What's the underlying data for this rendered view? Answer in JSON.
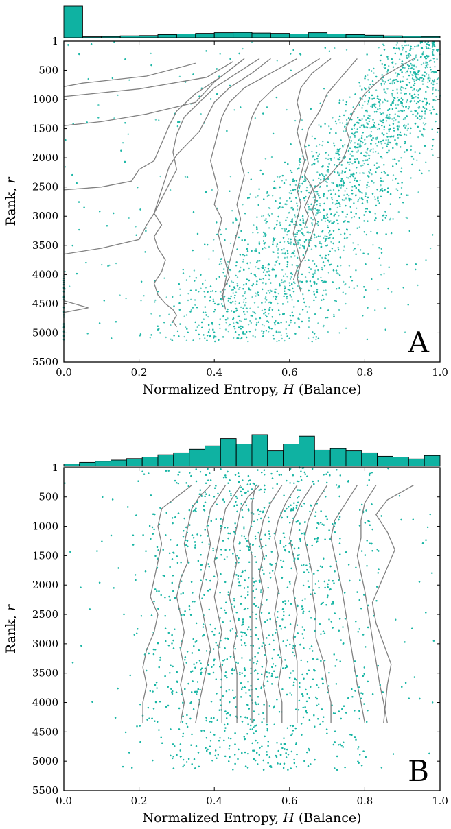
{
  "figure": {
    "colors": {
      "accent": "#14b3a3",
      "bar_fill": "#0fb2a2",
      "line": "#808080",
      "axis": "#000000"
    }
  },
  "chart_data": [
    {
      "type": "scatter",
      "panel_label": "A",
      "xlabel_parts": [
        "Normalized Entropy, ",
        "H",
        " (Balance)"
      ],
      "ylabel_parts": [
        "Rank, ",
        "r"
      ],
      "xlim": [
        0.0,
        1.0
      ],
      "ylim": [
        5500,
        1
      ],
      "y_inverted": true,
      "x_ticks": [
        "0.0",
        "0.2",
        "0.4",
        "0.6",
        "0.8",
        "1.0"
      ],
      "y_ticks": [
        "1",
        "500",
        "1000",
        "1500",
        "2000",
        "2500",
        "3000",
        "3500",
        "4000",
        "4500",
        "5000",
        "5500"
      ],
      "grid": false,
      "histogram": {
        "bins": 20,
        "counts": [
          1000,
          30,
          40,
          60,
          70,
          100,
          120,
          140,
          160,
          170,
          150,
          140,
          120,
          160,
          120,
          100,
          80,
          60,
          50,
          40
        ]
      },
      "scatter": {
        "approx_points": 5000
      },
      "curves": [
        {
          "x": [
            0.35,
            0.22,
            0.05,
            0.0
          ],
          "y": [
            380,
            600,
            720,
            780
          ]
        },
        {
          "x": [
            0.45,
            0.38,
            0.2,
            0.0
          ],
          "y": [
            350,
            620,
            820,
            950
          ]
        },
        {
          "x": [
            0.48,
            0.4,
            0.35,
            0.22,
            0.1,
            0.0
          ],
          "y": [
            300,
            700,
            1050,
            1250,
            1380,
            1450
          ]
        },
        {
          "x": [
            0.48,
            0.42,
            0.35,
            0.3,
            0.28,
            0.27,
            0.26,
            0.25,
            0.24,
            0.2,
            0.18,
            0.1,
            0.0
          ],
          "y": [
            300,
            600,
            900,
            1200,
            1450,
            1600,
            1750,
            1900,
            2050,
            2200,
            2400,
            2500,
            2550
          ]
        },
        {
          "x": [
            0.52,
            0.46,
            0.4,
            0.36,
            0.32,
            0.3,
            0.29,
            0.3,
            0.28,
            0.26,
            0.24,
            0.22,
            0.2,
            0.1,
            0.0
          ],
          "y": [
            300,
            550,
            800,
            1050,
            1300,
            1600,
            1900,
            2200,
            2450,
            2700,
            2950,
            3150,
            3400,
            3550,
            3650
          ]
        },
        {
          "x": [
            0.55,
            0.5,
            0.44,
            0.4,
            0.38,
            0.36,
            0.33,
            0.3,
            0.28,
            0.27,
            0.26,
            0.25,
            0.24,
            0.26,
            0.24,
            0.25,
            0.27,
            0.26,
            0.24,
            0.25,
            0.27,
            0.29,
            0.3,
            0.29,
            0.3
          ],
          "y": [
            300,
            550,
            800,
            1050,
            1300,
            1550,
            1750,
            1950,
            2150,
            2350,
            2550,
            2750,
            2950,
            3150,
            3350,
            3550,
            3750,
            3950,
            4150,
            4350,
            4500,
            4600,
            4700,
            4800,
            4900
          ]
        },
        {
          "x": [
            0.62,
            0.55,
            0.48,
            0.44,
            0.42,
            0.41,
            0.4,
            0.39,
            0.4,
            0.41,
            0.4,
            0.42,
            0.41,
            0.42,
            0.43,
            0.44,
            0.42,
            0.43
          ],
          "y": [
            300,
            550,
            800,
            1050,
            1300,
            1550,
            1800,
            2050,
            2300,
            2550,
            2800,
            3050,
            3300,
            3550,
            3800,
            4050,
            4300,
            4600
          ]
        },
        {
          "x": [
            0.68,
            0.62,
            0.56,
            0.52,
            0.5,
            0.49,
            0.48,
            0.47,
            0.48,
            0.47,
            0.46,
            0.47,
            0.46,
            0.45,
            0.44,
            0.43,
            0.42
          ],
          "y": [
            300,
            550,
            800,
            1050,
            1300,
            1550,
            1800,
            2050,
            2300,
            2550,
            2800,
            3050,
            3300,
            3550,
            3800,
            4100,
            4450
          ]
        },
        {
          "x": [
            0.71,
            0.66,
            0.63,
            0.62,
            0.63,
            0.62,
            0.63,
            0.64,
            0.63,
            0.62,
            0.63,
            0.62,
            0.61,
            0.62,
            0.63,
            0.62,
            0.63
          ],
          "y": [
            300,
            550,
            800,
            1050,
            1300,
            1550,
            1800,
            2050,
            2300,
            2550,
            2800,
            3050,
            3300,
            3550,
            3800,
            4050,
            4300
          ]
        },
        {
          "x": [
            0.78,
            0.74,
            0.7,
            0.68,
            0.65,
            0.64,
            0.65,
            0.64,
            0.66,
            0.67,
            0.66,
            0.67,
            0.66,
            0.65,
            0.64,
            0.62,
            0.61
          ],
          "y": [
            300,
            600,
            900,
            1200,
            1500,
            1800,
            2100,
            2300,
            2500,
            2700,
            2900,
            3100,
            3300,
            3500,
            3700,
            3900,
            4100
          ]
        },
        {
          "x": [
            0.93,
            0.85,
            0.8,
            0.77,
            0.75,
            0.76,
            0.75,
            0.74,
            0.72,
            0.7,
            0.68,
            0.66,
            0.65,
            0.64,
            0.65,
            0.64
          ],
          "y": [
            300,
            600,
            900,
            1200,
            1500,
            1700,
            1900,
            2050,
            2200,
            2350,
            2450,
            2550,
            2700,
            2850,
            3000,
            3200
          ]
        },
        {
          "x": [
            0.0,
            0.065,
            0.0
          ],
          "y": [
            4450,
            4570,
            4650
          ]
        }
      ]
    },
    {
      "type": "scatter",
      "panel_label": "B",
      "xlabel_parts": [
        "Normalized Entropy, ",
        "H",
        " (Balance)"
      ],
      "ylabel_parts": [
        "Rank, ",
        "r"
      ],
      "xlim": [
        0.0,
        1.0
      ],
      "ylim": [
        5500,
        1
      ],
      "y_inverted": true,
      "x_ticks": [
        "0.0",
        "0.2",
        "0.4",
        "0.6",
        "0.8",
        "1.0"
      ],
      "y_ticks": [
        "1",
        "500",
        "1000",
        "1500",
        "2000",
        "2500",
        "3000",
        "3500",
        "4000",
        "4500",
        "5000",
        "5500"
      ],
      "grid": false,
      "histogram": {
        "bins": 24,
        "counts": [
          60,
          100,
          130,
          160,
          200,
          240,
          300,
          350,
          440,
          530,
          720,
          580,
          820,
          400,
          580,
          780,
          420,
          460,
          400,
          350,
          260,
          240,
          190,
          280
        ]
      },
      "scatter": {
        "approx_points": 5000
      },
      "curves": [
        {
          "x": [
            0.34,
            0.3,
            0.26,
            0.25,
            0.26,
            0.25,
            0.24,
            0.23,
            0.25,
            0.24,
            0.22,
            0.21,
            0.22,
            0.21,
            0.21
          ],
          "y": [
            300,
            500,
            700,
            1000,
            1300,
            1600,
            1900,
            2200,
            2500,
            2800,
            3100,
            3400,
            3700,
            4000,
            4350
          ]
        },
        {
          "x": [
            0.39,
            0.36,
            0.34,
            0.33,
            0.32,
            0.33,
            0.31,
            0.3,
            0.31,
            0.32,
            0.31,
            0.32,
            0.31,
            0.32,
            0.31
          ],
          "y": [
            300,
            500,
            700,
            1000,
            1300,
            1600,
            1900,
            2200,
            2500,
            2800,
            3100,
            3400,
            3700,
            4000,
            4350
          ]
        },
        {
          "x": [
            0.43,
            0.41,
            0.39,
            0.38,
            0.39,
            0.38,
            0.37,
            0.36,
            0.37,
            0.38,
            0.39,
            0.38,
            0.37,
            0.36,
            0.35
          ],
          "y": [
            300,
            500,
            700,
            1000,
            1300,
            1600,
            1900,
            2200,
            2500,
            2800,
            3100,
            3400,
            3700,
            4000,
            4350
          ]
        },
        {
          "x": [
            0.47,
            0.45,
            0.43,
            0.42,
            0.41,
            0.4,
            0.41,
            0.4,
            0.41,
            0.42,
            0.41,
            0.42,
            0.42,
            0.42
          ],
          "y": [
            300,
            500,
            700,
            1000,
            1300,
            1600,
            1900,
            2200,
            2500,
            2800,
            3100,
            3500,
            3900,
            4350
          ]
        },
        {
          "x": [
            0.52,
            0.49,
            0.47,
            0.46,
            0.45,
            0.46,
            0.45,
            0.44,
            0.45,
            0.46,
            0.45,
            0.46,
            0.46,
            0.46
          ],
          "y": [
            300,
            500,
            700,
            1000,
            1300,
            1600,
            1900,
            2200,
            2500,
            2800,
            3100,
            3500,
            3900,
            4350
          ]
        },
        {
          "x": [
            0.51,
            0.5,
            0.5,
            0.49,
            0.5,
            0.5,
            0.5,
            0.5,
            0.5,
            0.5,
            0.5,
            0.5,
            0.5
          ],
          "y": [
            300,
            600,
            900,
            1200,
            1500,
            1800,
            2100,
            2500,
            2900,
            3300,
            3700,
            4000,
            4350
          ]
        },
        {
          "x": [
            0.58,
            0.55,
            0.53,
            0.52,
            0.53,
            0.52,
            0.53,
            0.52,
            0.53,
            0.54,
            0.53,
            0.54,
            0.54
          ],
          "y": [
            300,
            600,
            900,
            1200,
            1500,
            1800,
            2100,
            2500,
            2900,
            3300,
            3700,
            4000,
            4350
          ]
        },
        {
          "x": [
            0.62,
            0.59,
            0.57,
            0.56,
            0.57,
            0.56,
            0.57,
            0.56,
            0.57,
            0.58,
            0.57,
            0.58,
            0.58
          ],
          "y": [
            300,
            600,
            900,
            1200,
            1500,
            1800,
            2100,
            2500,
            2900,
            3300,
            3700,
            4000,
            4350
          ]
        },
        {
          "x": [
            0.66,
            0.63,
            0.61,
            0.6,
            0.61,
            0.62,
            0.61,
            0.62,
            0.61,
            0.62,
            0.62,
            0.62,
            0.62
          ],
          "y": [
            300,
            600,
            900,
            1200,
            1500,
            1800,
            2100,
            2500,
            2900,
            3300,
            3700,
            4000,
            4350
          ]
        },
        {
          "x": [
            0.7,
            0.67,
            0.65,
            0.64,
            0.65,
            0.66,
            0.66,
            0.67,
            0.67,
            0.69,
            0.7,
            0.71,
            0.71
          ],
          "y": [
            300,
            600,
            900,
            1200,
            1500,
            1800,
            2100,
            2500,
            2900,
            3300,
            3700,
            4000,
            4350
          ]
        },
        {
          "x": [
            0.78,
            0.75,
            0.72,
            0.71,
            0.72,
            0.73,
            0.74,
            0.75,
            0.76,
            0.77,
            0.78,
            0.79,
            0.8
          ],
          "y": [
            300,
            600,
            900,
            1200,
            1500,
            1800,
            2100,
            2500,
            2900,
            3300,
            3700,
            4000,
            4350
          ]
        },
        {
          "x": [
            0.83,
            0.8,
            0.79,
            0.79,
            0.78,
            0.79,
            0.8,
            0.81,
            0.82,
            0.83,
            0.84,
            0.85,
            0.86
          ],
          "y": [
            300,
            600,
            900,
            1200,
            1500,
            1800,
            2100,
            2500,
            2900,
            3300,
            3700,
            4000,
            4350
          ]
        },
        {
          "x": [
            0.93,
            0.86,
            0.83,
            0.86,
            0.88,
            0.86,
            0.84,
            0.82,
            0.83,
            0.85,
            0.87,
            0.86,
            0.85
          ],
          "y": [
            300,
            550,
            800,
            1100,
            1400,
            1700,
            2000,
            2300,
            2650,
            3000,
            3350,
            3700,
            4350
          ]
        }
      ]
    }
  ]
}
